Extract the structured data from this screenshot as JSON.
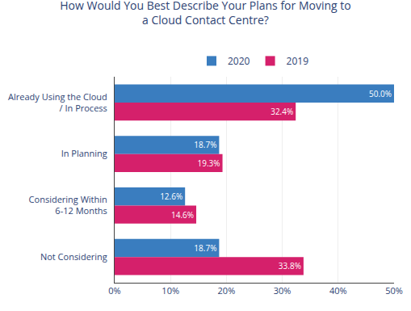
{
  "chart_data": {
    "type": "bar",
    "orientation": "horizontal",
    "title": "How Would You Best Describe Your Plans for Moving to\na Cloud Contact Centre?",
    "categories": [
      "Already Using the Cloud\n/ In Process",
      "In Planning",
      "Considering Within\n6-12 Months",
      "Not Considering"
    ],
    "series": [
      {
        "name": "2020",
        "color": "#3a7dbf",
        "values": [
          50.0,
          18.7,
          12.6,
          18.7
        ],
        "value_labels": [
          "50.0%",
          "18.7%",
          "12.6%",
          "18.7%"
        ]
      },
      {
        "name": "2019",
        "color": "#d5206b",
        "values": [
          32.4,
          19.3,
          14.6,
          33.8
        ],
        "value_labels": [
          "32.4%",
          "19.3%",
          "14.6%",
          "33.8%"
        ]
      }
    ],
    "xlim": [
      0,
      50
    ],
    "xticks": [
      {
        "value": 0,
        "label": "0%"
      },
      {
        "value": 10,
        "label": "10%"
      },
      {
        "value": 20,
        "label": "20%"
      },
      {
        "value": 30,
        "label": "30%"
      },
      {
        "value": 40,
        "label": "40%"
      },
      {
        "value": 50,
        "label": "50%"
      }
    ],
    "grid": true,
    "legend": "top",
    "data_labels": true
  }
}
